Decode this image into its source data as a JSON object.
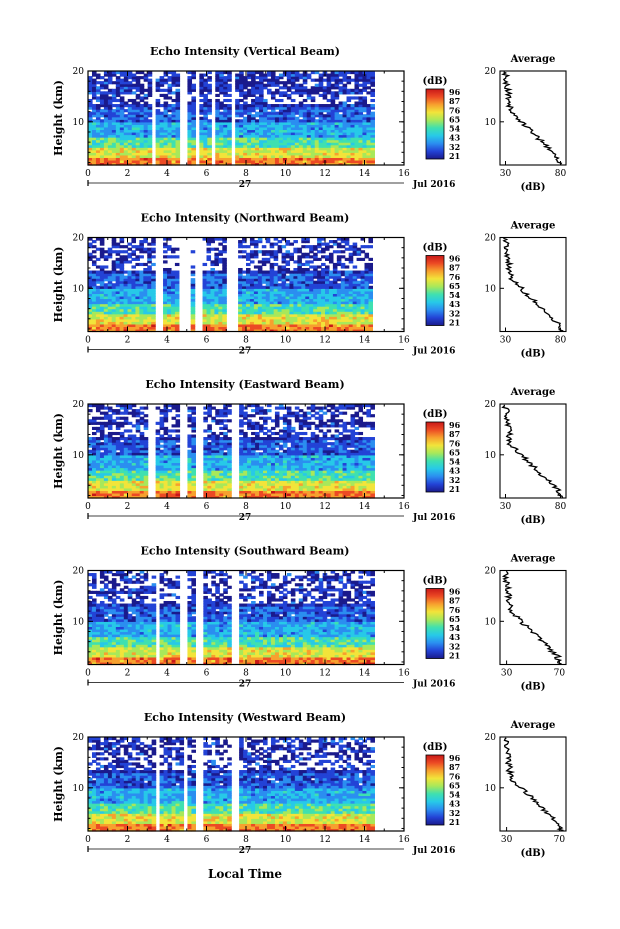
{
  "figure": {
    "colorbar_unit": "(dB)",
    "colorbar_ticks": [
      [
        "96",
        "87",
        "76",
        "65",
        "54",
        "43",
        "32",
        "21"
      ],
      [
        "96",
        "87",
        "76",
        "65",
        "54",
        "43",
        "32",
        "21"
      ],
      [
        "96",
        "87",
        "76",
        "65",
        "54",
        "43",
        "32",
        "21"
      ],
      [
        "96",
        "87",
        "76",
        "65",
        "54",
        "43",
        "32",
        "21"
      ],
      [
        "96",
        "87",
        "76",
        "65",
        "54",
        "43",
        "32",
        "21"
      ]
    ],
    "colorbar_colors": [
      "#1a1a8c",
      "#2343d6",
      "#2b8ef0",
      "#27c9e8",
      "#3fe0b0",
      "#a8e85a",
      "#f2e43a",
      "#f7a02e",
      "#ec4a24",
      "#c81818"
    ],
    "date_label": "Jul 2016",
    "day_label": "27",
    "xlabel": "Local Time",
    "average_title": "Average",
    "average_xlabel": "(dB)"
  },
  "chart_data": [
    {
      "type": "heatmap",
      "title": "Echo Intensity (Vertical Beam)",
      "ylabel": "Height (km)",
      "x_ticks": [
        "0",
        "2",
        "4",
        "6",
        "8",
        "10",
        "12",
        "14",
        "16"
      ],
      "y_ticks": [
        "20",
        "10"
      ],
      "xlim": [
        0,
        16
      ],
      "ylim": [
        1.5,
        20
      ],
      "data_gaps_hours": [
        [
          3.2,
          3.5
        ],
        [
          4.7,
          5.1
        ],
        [
          5.4,
          5.6
        ],
        [
          6.2,
          6.5
        ],
        [
          7.2,
          7.5
        ]
      ],
      "data_end_hour": 14.5,
      "average": {
        "x_ticks": [
          "30",
          "80"
        ],
        "xlim": [
          25,
          85
        ],
        "y_ticks": [
          "20",
          "10"
        ]
      }
    },
    {
      "type": "heatmap",
      "title": "Echo Intensity (Northward Beam)",
      "ylabel": "Height (km)",
      "x_ticks": [
        "0",
        "2",
        "4",
        "6",
        "8",
        "10",
        "12",
        "14",
        "16"
      ],
      "y_ticks": [
        "20",
        "10"
      ],
      "xlim": [
        0,
        16
      ],
      "ylim": [
        1.5,
        20
      ],
      "data_gaps_hours": [
        [
          3.4,
          3.7
        ],
        [
          4.7,
          5.1
        ],
        [
          5.4,
          5.7
        ],
        [
          7.1,
          7.5
        ]
      ],
      "data_end_hour": 14.4,
      "average": {
        "x_ticks": [
          "30",
          "80"
        ],
        "xlim": [
          25,
          85
        ],
        "y_ticks": [
          "20",
          "10"
        ]
      }
    },
    {
      "type": "heatmap",
      "title": "Echo Intensity (Eastward Beam)",
      "ylabel": "Height (km)",
      "x_ticks": [
        "0",
        "2",
        "4",
        "6",
        "8",
        "10",
        "12",
        "14",
        "16"
      ],
      "y_ticks": [
        "20",
        "10"
      ],
      "xlim": [
        0,
        16
      ],
      "ylim": [
        1.5,
        20
      ],
      "data_gaps_hours": [
        [
          3.1,
          3.4
        ],
        [
          4.7,
          5.1
        ],
        [
          5.5,
          5.8
        ],
        [
          7.2,
          7.6
        ]
      ],
      "data_end_hour": 14.5,
      "average": {
        "x_ticks": [
          "30",
          "80"
        ],
        "xlim": [
          25,
          85
        ],
        "y_ticks": [
          "20",
          "10"
        ]
      }
    },
    {
      "type": "heatmap",
      "title": "Echo Intensity (Southward Beam)",
      "ylabel": "Height (km)",
      "x_ticks": [
        "0",
        "2",
        "4",
        "6",
        "8",
        "10",
        "12",
        "14",
        "16"
      ],
      "y_ticks": [
        "20",
        "10"
      ],
      "xlim": [
        0,
        16
      ],
      "ylim": [
        1.5,
        20
      ],
      "data_gaps_hours": [
        [
          3.4,
          3.7
        ],
        [
          4.7,
          5.1
        ],
        [
          5.5,
          5.8
        ],
        [
          7.2,
          7.6
        ]
      ],
      "data_end_hour": 14.5,
      "average": {
        "x_ticks": [
          "30",
          "70"
        ],
        "xlim": [
          25,
          75
        ],
        "y_ticks": [
          "20",
          "10"
        ]
      }
    },
    {
      "type": "heatmap",
      "title": "Echo Intensity (Westward Beam)",
      "ylabel": "Height (km)",
      "x_ticks": [
        "0",
        "2",
        "4",
        "6",
        "8",
        "10",
        "12",
        "14",
        "16"
      ],
      "y_ticks": [
        "20",
        "10"
      ],
      "xlim": [
        0,
        16
      ],
      "ylim": [
        1.5,
        20
      ],
      "data_gaps_hours": [
        [
          3.4,
          3.7
        ],
        [
          4.8,
          5.1
        ],
        [
          5.5,
          5.8
        ],
        [
          7.2,
          7.6
        ]
      ],
      "data_end_hour": 14.5,
      "average": {
        "x_ticks": [
          "30",
          "70"
        ],
        "xlim": [
          25,
          75
        ],
        "y_ticks": [
          "20",
          "10"
        ]
      }
    }
  ]
}
